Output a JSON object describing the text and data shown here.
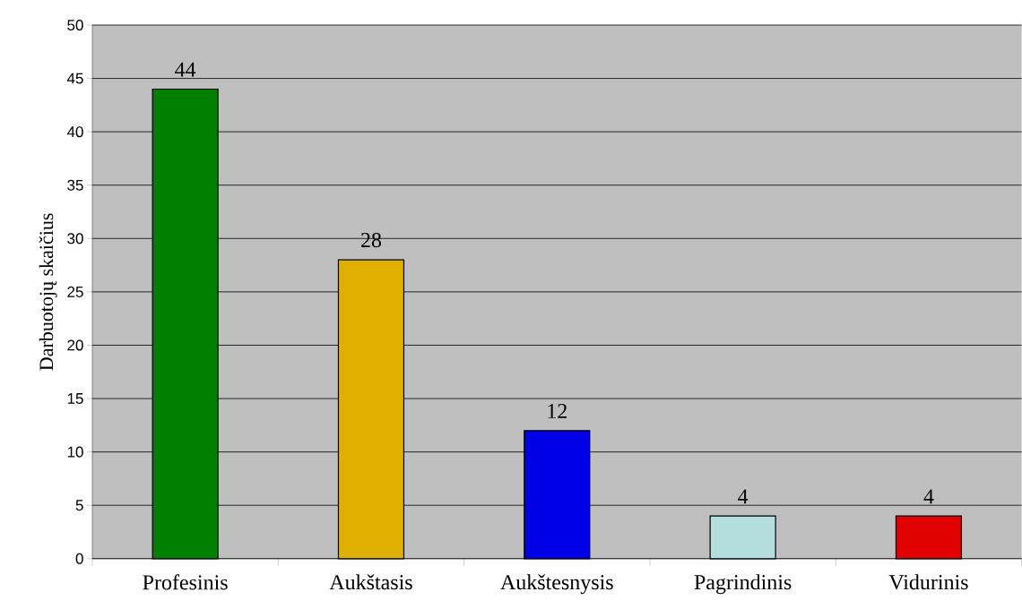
{
  "chart_data": {
    "type": "bar",
    "ylabel": "Darbuotojų skaičius",
    "categories": [
      "Profesinis",
      "Aukštasis",
      "Aukštesnysis",
      "Pagrindinis",
      "Vidurinis"
    ],
    "values": [
      44,
      28,
      12,
      4,
      4
    ],
    "colors": [
      "#008000",
      "#e0b000",
      "#0000e6",
      "#b4dede",
      "#e00000"
    ],
    "ylim": [
      0,
      50
    ],
    "yticks": [
      0,
      5,
      10,
      15,
      20,
      25,
      30,
      35,
      40,
      45,
      50
    ],
    "grid": "y",
    "data_labels": true
  }
}
